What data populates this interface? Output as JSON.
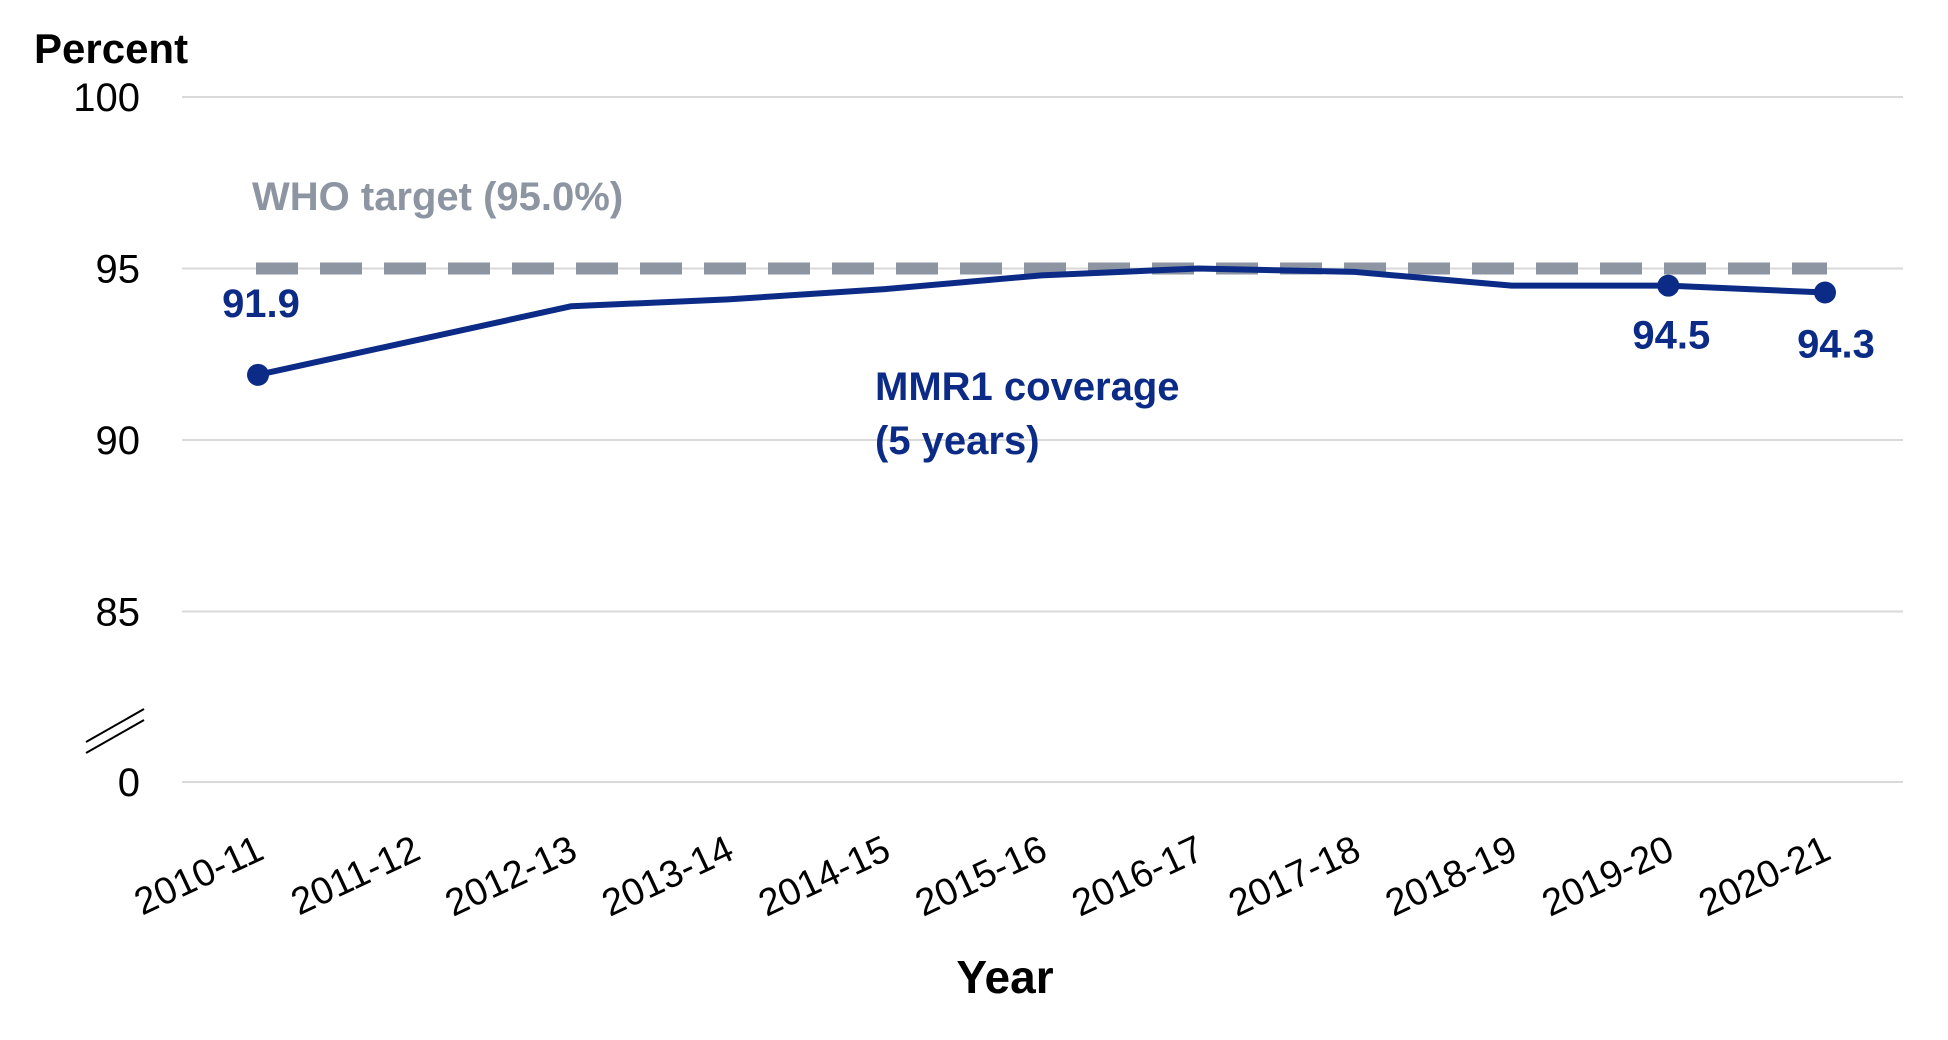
{
  "chart_data": {
    "type": "line",
    "ylabel": "Percent",
    "xlabel": "Year",
    "categories": [
      "2010-11",
      "2011-12",
      "2012-13",
      "2013-14",
      "2014-15",
      "2015-16",
      "2016-17",
      "2017-18",
      "2018-19",
      "2019-20",
      "2020-21"
    ],
    "y_ticks": [
      "100",
      "95",
      "90",
      "85",
      "0"
    ],
    "axis_break": true,
    "grid": true,
    "series": [
      {
        "name": "MMR1 coverage (5 years)",
        "name_lines": [
          "MMR1 coverage",
          "(5 years)"
        ],
        "values": [
          91.9,
          92.9,
          93.9,
          94.1,
          94.4,
          94.8,
          95.0,
          94.9,
          94.5,
          94.5,
          94.3
        ],
        "color": "#0b2b86",
        "labeled_points": [
          {
            "index": 0,
            "label": "91.9"
          },
          {
            "index": 9,
            "label": "94.5"
          },
          {
            "index": 10,
            "label": "94.3"
          }
        ]
      }
    ],
    "reference_line": {
      "label": "WHO target (95.0%)",
      "value": 95.0,
      "color": "#8c95a1",
      "style": "dashed"
    }
  }
}
